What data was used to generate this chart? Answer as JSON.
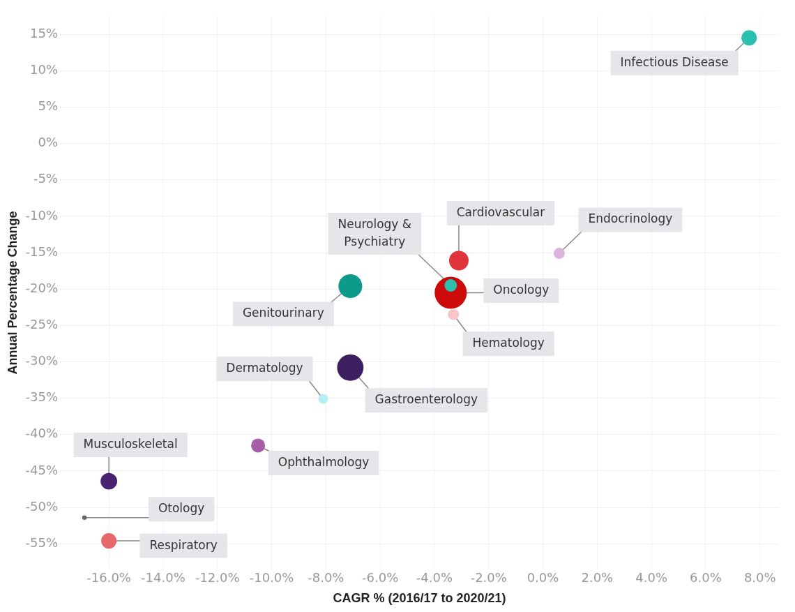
{
  "chart_data": {
    "type": "bubble",
    "xlabel": "CAGR % (2016/17 to 2020/21)",
    "ylabel": "Annual Percentage Change",
    "xlim": [
      -17.8,
      8.7
    ],
    "xticks": [
      {
        "value": -16,
        "label": "-16.0%"
      },
      {
        "value": -14,
        "label": "-14.0%"
      },
      {
        "value": -12,
        "label": "-12.0%"
      },
      {
        "value": -10,
        "label": "-10.0%"
      },
      {
        "value": -8,
        "label": "-8.0%"
      },
      {
        "value": -6,
        "label": "-6.0%"
      },
      {
        "value": -4,
        "label": "-4.0%"
      },
      {
        "value": -2,
        "label": "-2.0%"
      },
      {
        "value": 0,
        "label": "0.0%"
      },
      {
        "value": 2,
        "label": "2.0%"
      },
      {
        "value": 4,
        "label": "4.0%"
      },
      {
        "value": 6,
        "label": "6.0%"
      },
      {
        "value": 8,
        "label": "8.0%"
      }
    ],
    "ylim": [
      -58.5,
      17.5
    ],
    "yticks": [
      {
        "value": 15,
        "label": "15%"
      },
      {
        "value": 10,
        "label": "10%"
      },
      {
        "value": 5,
        "label": "5%"
      },
      {
        "value": 0,
        "label": "0%"
      },
      {
        "value": -5,
        "label": "-5%"
      },
      {
        "value": -10,
        "label": "-10%"
      },
      {
        "value": -15,
        "label": "-15%"
      },
      {
        "value": -20,
        "label": "-20%"
      },
      {
        "value": -25,
        "label": "-25%"
      },
      {
        "value": -30,
        "label": "-30%"
      },
      {
        "value": -35,
        "label": "-35%"
      },
      {
        "value": -40,
        "label": "-40%"
      },
      {
        "value": -45,
        "label": "-45%"
      },
      {
        "value": -50,
        "label": "-50%"
      },
      {
        "value": -55,
        "label": "-55%"
      }
    ],
    "grid": true,
    "legend": false,
    "series": [
      {
        "name": "Infectious Disease",
        "color": "#2bbfb0",
        "x": [
          7.6
        ],
        "values": [
          14.5
        ],
        "sizes": [
          0.23
        ]
      },
      {
        "name": "Endocrinology",
        "color": "#dbb6dc",
        "x": [
          0.6
        ],
        "values": [
          -15.1
        ],
        "sizes": [
          0.12
        ]
      },
      {
        "name": "Cardiovascular",
        "color": "#e0343c",
        "x": [
          -3.1
        ],
        "values": [
          -16.1
        ],
        "sizes": [
          0.37
        ]
      },
      {
        "name": "Oncology",
        "color": "#cc0a0a",
        "x": [
          -3.4
        ],
        "values": [
          -20.5
        ],
        "sizes": [
          1
        ]
      },
      {
        "name": "Neurology & Psychiatry",
        "color": "#2bbfb0",
        "x": [
          -3.4
        ],
        "values": [
          -19.5
        ],
        "sizes": [
          0.15
        ]
      },
      {
        "name": "Hematology",
        "color": "#f7c6c8",
        "x": [
          -3.3
        ],
        "values": [
          -23.5
        ],
        "sizes": [
          0.12
        ]
      },
      {
        "name": "Genitourinary",
        "color": "#0e9a8a",
        "x": [
          -7.1
        ],
        "values": [
          -19.6
        ],
        "sizes": [
          0.55
        ]
      },
      {
        "name": "Gastroenterology",
        "color": "#3b1f5e",
        "x": [
          -7.1
        ],
        "values": [
          -30.8
        ],
        "sizes": [
          0.68
        ]
      },
      {
        "name": "Dermatology",
        "color": "#b3eff0",
        "x": [
          -8.1
        ],
        "values": [
          -35.1
        ],
        "sizes": [
          0.09
        ]
      },
      {
        "name": "Ophthalmology",
        "color": "#a65fa6",
        "x": [
          -10.5
        ],
        "values": [
          -41.5
        ],
        "sizes": [
          0.19
        ]
      },
      {
        "name": "Musculoskeletal",
        "color": "#4a2370",
        "x": [
          -16.0
        ],
        "values": [
          -46.4
        ],
        "sizes": [
          0.27
        ]
      },
      {
        "name": "Otology",
        "color": "#666666",
        "x": [
          -16.9
        ],
        "values": [
          -51.4
        ],
        "sizes": [
          0.02
        ]
      },
      {
        "name": "Respiratory",
        "color": "#e8676b",
        "x": [
          -16.0
        ],
        "values": [
          -54.6
        ],
        "sizes": [
          0.23
        ]
      }
    ]
  }
}
